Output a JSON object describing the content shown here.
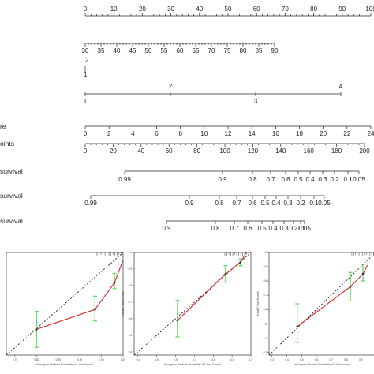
{
  "nomogram": {
    "rows": [
      {
        "key": "points",
        "label": "",
        "ticks": [
          "0",
          "10",
          "20",
          "30",
          "40",
          "50",
          "60",
          "70",
          "80",
          "90",
          "100"
        ]
      },
      {
        "key": "age",
        "label": "",
        "ticks": [
          "30",
          "35",
          "40",
          "45",
          "50",
          "55",
          "60",
          "65",
          "70",
          "75",
          "80",
          "85",
          "90"
        ]
      },
      {
        "key": "var_a",
        "label": "",
        "ticks": [
          "1",
          "2"
        ]
      },
      {
        "key": "var_b",
        "label": "",
        "ticks": [
          "1",
          "2",
          "3",
          "4"
        ]
      },
      {
        "key": "score",
        "label": "re",
        "ticks": [
          "0",
          "2",
          "4",
          "6",
          "8",
          "10",
          "12",
          "14",
          "16",
          "18",
          "20",
          "22",
          "24"
        ]
      },
      {
        "key": "total_points",
        "label": "oints",
        "ticks": [
          "0",
          "20",
          "40",
          "60",
          "80",
          "100",
          "120",
          "140",
          "160",
          "180",
          "200"
        ]
      },
      {
        "key": "surv1",
        "label": "survival",
        "ticks": [
          "0.99",
          "0.9",
          "0.8",
          "0.7",
          "0.6",
          "0.5",
          "0.4",
          "0.3",
          "0.2",
          "0.1",
          "0.05"
        ]
      },
      {
        "key": "surv3",
        "label": "survival",
        "ticks": [
          "0.99",
          "0.9",
          "0.8",
          "0.7",
          "0.6",
          "0.5",
          "0.4",
          "0.3",
          "0.2",
          "0.1",
          "0.05"
        ]
      },
      {
        "key": "surv5",
        "label": "survival",
        "ticks": [
          "0.9",
          "0.8",
          "0.7",
          "0.6",
          "0.5",
          "0.4",
          "0.3",
          "0.2",
          "0.1",
          "0.05"
        ]
      }
    ]
  },
  "chart_data": [
    {
      "type": "line",
      "xlabel": "Nomogram-Predicted Probability of 1-Year Survival",
      "ylabel": "",
      "xticks": [
        "0.75",
        "0.80",
        "0.85",
        "0.90",
        "0.95",
        "1.00"
      ],
      "yticks": [],
      "xlim": [
        0.73,
        1.0
      ],
      "ylim": [
        0.73,
        1.0
      ],
      "points": [
        {
          "x": 0.8,
          "y": 0.798,
          "lo": 0.75,
          "hi": 0.845
        },
        {
          "x": 0.935,
          "y": 0.85,
          "lo": 0.82,
          "hi": 0.885
        },
        {
          "x": 0.98,
          "y": 0.92,
          "lo": 0.905,
          "hi": 0.945
        }
      ],
      "line_color": "#d62728",
      "bar_color": "#66dd66"
    },
    {
      "type": "line",
      "xlabel": "Nomogram-Predicted Probability of 3-Year Survival",
      "ylabel": "Actual 3-Year Survival",
      "xticks": [
        "0.4",
        "0.5",
        "0.6",
        "0.7",
        "0.8",
        "0.9",
        "1.0"
      ],
      "yticks": [
        "0.4",
        "0.5",
        "0.6",
        "0.7",
        "0.8",
        "0.9",
        "1.0"
      ],
      "xlim": [
        0.38,
        1.0
      ],
      "ylim": [
        0.38,
        1.0
      ],
      "points": [
        {
          "x": 0.61,
          "y": 0.59,
          "lo": 0.49,
          "hi": 0.71
        },
        {
          "x": 0.865,
          "y": 0.87,
          "lo": 0.82,
          "hi": 0.92
        },
        {
          "x": 0.945,
          "y": 0.94,
          "lo": 0.92,
          "hi": 0.96
        }
      ],
      "line_color": "#d62728",
      "bar_color": "#66dd66"
    },
    {
      "type": "line",
      "xlabel": "Nomogram-Predicted Probability of 5-Year Survival",
      "ylabel": "Actual 5-Year Survival",
      "xticks": [
        "0.3",
        "0.4",
        "0.5",
        "0.6",
        "0.7",
        "0.8",
        "0.9",
        "1.0"
      ],
      "yticks": [
        "0.3",
        "0.4",
        "0.5",
        "0.6",
        "0.7",
        "0.8",
        "0.9",
        "1.0"
      ],
      "xlim": [
        0.28,
        1.0
      ],
      "ylim": [
        0.28,
        1.0
      ],
      "points": [
        {
          "x": 0.47,
          "y": 0.48,
          "lo": 0.37,
          "hi": 0.64
        },
        {
          "x": 0.83,
          "y": 0.76,
          "lo": 0.66,
          "hi": 0.86
        },
        {
          "x": 0.915,
          "y": 0.85,
          "lo": 0.8,
          "hi": 0.9
        }
      ],
      "line_color": "#d62728",
      "bar_color": "#66dd66"
    }
  ]
}
